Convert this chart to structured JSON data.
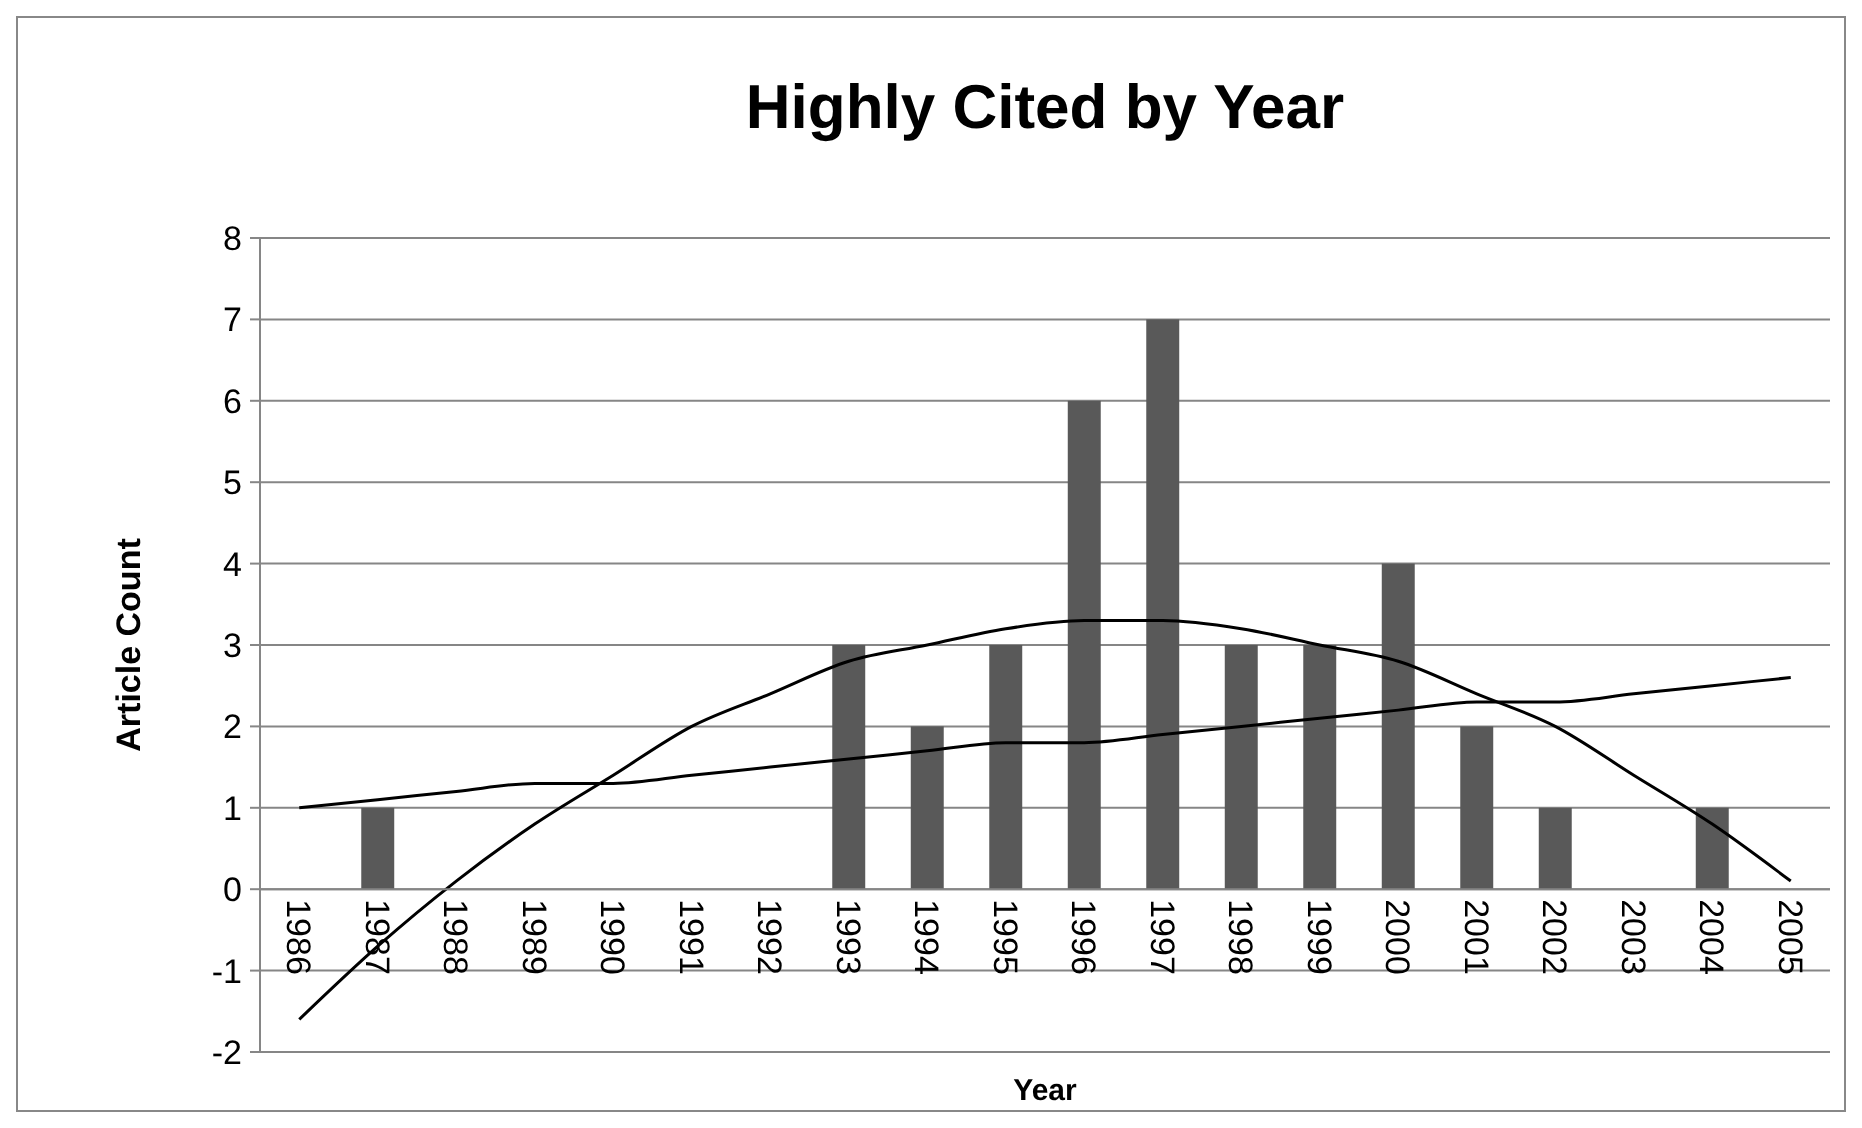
{
  "chart_data": {
    "type": "bar",
    "title": "Highly Cited by Year",
    "xlabel": "Year",
    "ylabel": "Article Count",
    "categories": [
      "1986",
      "1987",
      "1988",
      "1989",
      "1990",
      "1991",
      "1992",
      "1993",
      "1994",
      "1995",
      "1996",
      "1997",
      "1998",
      "1999",
      "2000",
      "2001",
      "2002",
      "2003",
      "2004",
      "2005"
    ],
    "series": [
      {
        "color": "#595959",
        "values": [
          0,
          1,
          0,
          0,
          0,
          0,
          0,
          3,
          2,
          3,
          6,
          7,
          3,
          3,
          4,
          2,
          1,
          0,
          1,
          0
        ]
      },
      {
        "type": "line",
        "color": "#000000",
        "values": [
          1.0,
          1.1,
          1.2,
          1.3,
          1.3,
          1.4,
          1.5,
          1.6,
          1.7,
          1.8,
          1.8,
          1.9,
          2.0,
          2.1,
          2.2,
          2.3,
          2.3,
          2.4,
          2.5,
          2.6
        ]
      },
      {
        "type": "line",
        "color": "#000000",
        "values": [
          -1.6,
          -0.7,
          0.1,
          0.8,
          1.4,
          2.0,
          2.4,
          2.8,
          3.0,
          3.2,
          3.3,
          3.3,
          3.2,
          3.0,
          2.8,
          2.4,
          2.0,
          1.4,
          0.8,
          0.1
        ]
      }
    ],
    "ylim": [
      -2,
      8
    ],
    "yticks": [
      -2,
      -1,
      0,
      1,
      2,
      3,
      4,
      5,
      6,
      7,
      8
    ],
    "grid": "y",
    "marker": "none",
    "line_style": "solid"
  }
}
